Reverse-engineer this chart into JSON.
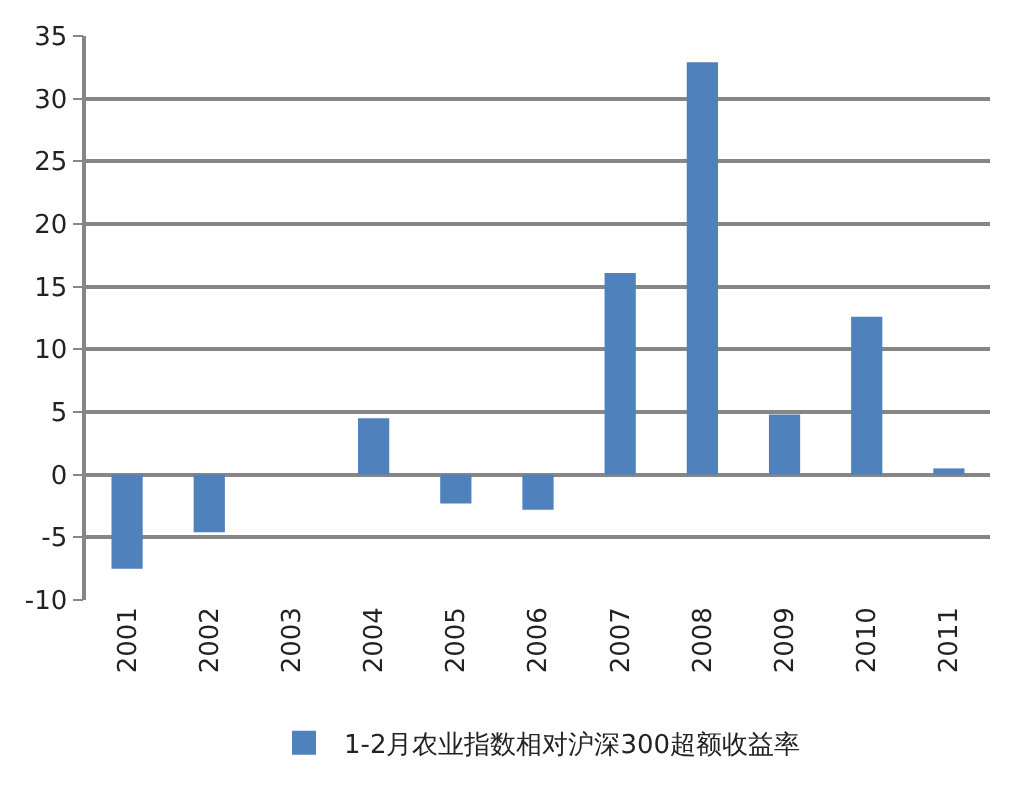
{
  "chart_data": {
    "type": "bar",
    "categories": [
      "2001",
      "2002",
      "2003",
      "2004",
      "2005",
      "2006",
      "2007",
      "2008",
      "2009",
      "2010",
      "2011"
    ],
    "series": [
      {
        "name": "1-2月农业指数相对沪深300超额收益率",
        "color": "#4f81bd",
        "values": [
          -7.5,
          -4.6,
          null,
          4.5,
          -2.3,
          -2.8,
          16.1,
          32.9,
          4.8,
          12.6,
          0.5
        ]
      }
    ],
    "ylim": [
      -10,
      35
    ],
    "yticks": [
      -10,
      -5,
      0,
      5,
      10,
      15,
      20,
      25,
      30,
      35
    ],
    "grid": "y",
    "legend": "bottom"
  }
}
